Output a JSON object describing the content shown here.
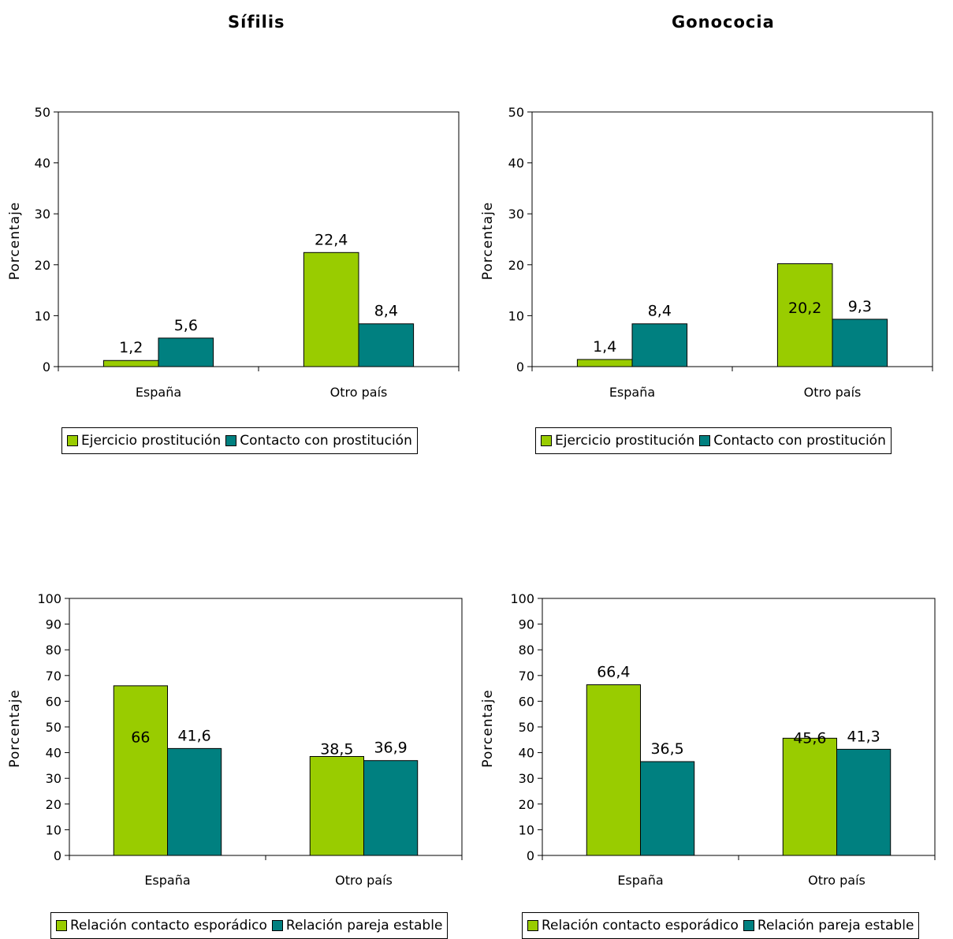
{
  "columns": {
    "left_title": "Sífilis",
    "right_title": "Gonococia"
  },
  "colors": {
    "green": "#99CC00",
    "teal": "#008080"
  },
  "chart_data": [
    {
      "type": "bar",
      "title": "",
      "ylabel": "Porcentaje",
      "xlabel": "",
      "ylim": [
        0,
        50
      ],
      "yticks": [
        0,
        10,
        20,
        30,
        40,
        50
      ],
      "categories": [
        "España",
        "Otro país"
      ],
      "series": [
        {
          "name": "Ejercicio prostitución",
          "values": [
            1.2,
            22.4
          ],
          "labels": [
            "1,2",
            "22,4"
          ]
        },
        {
          "name": "Contacto con prostitución",
          "values": [
            5.6,
            8.4
          ],
          "labels": [
            "5,6",
            "8,4"
          ]
        }
      ],
      "legend": "bottom"
    },
    {
      "type": "bar",
      "title": "",
      "ylabel": "Porcentaje",
      "xlabel": "",
      "ylim": [
        0,
        50
      ],
      "yticks": [
        0,
        10,
        20,
        30,
        40,
        50
      ],
      "categories": [
        "España",
        "Otro país"
      ],
      "series": [
        {
          "name": "Ejercicio prostitución",
          "values": [
            1.4,
            20.2
          ],
          "labels": [
            "1,4",
            "20,2"
          ]
        },
        {
          "name": "Contacto con prostitución",
          "values": [
            8.4,
            9.3
          ],
          "labels": [
            "8,4",
            "9,3"
          ]
        }
      ],
      "legend": "bottom"
    },
    {
      "type": "bar",
      "title": "",
      "ylabel": "Porcentaje",
      "xlabel": "",
      "ylim": [
        0,
        100
      ],
      "yticks": [
        0,
        10,
        20,
        30,
        40,
        50,
        60,
        70,
        80,
        90,
        100
      ],
      "categories": [
        "España",
        "Otro país"
      ],
      "series": [
        {
          "name": "Relación contacto esporádico",
          "values": [
            66,
            38.5
          ],
          "labels": [
            "66",
            "38,5"
          ]
        },
        {
          "name": "Relación pareja estable",
          "values": [
            41.6,
            36.9
          ],
          "labels": [
            "41,6",
            "36,9"
          ]
        }
      ],
      "legend": "bottom"
    },
    {
      "type": "bar",
      "title": "",
      "ylabel": "Porcentaje",
      "xlabel": "",
      "ylim": [
        0,
        100
      ],
      "yticks": [
        0,
        10,
        20,
        30,
        40,
        50,
        60,
        70,
        80,
        90,
        100
      ],
      "categories": [
        "España",
        "Otro país"
      ],
      "series": [
        {
          "name": "Relación contacto esporádico",
          "values": [
            66.4,
            45.6
          ],
          "labels": [
            "66,4",
            "45,6"
          ]
        },
        {
          "name": "Relación pareja estable",
          "values": [
            36.5,
            41.3
          ],
          "labels": [
            "36,5",
            "41,3"
          ]
        }
      ],
      "legend": "bottom"
    }
  ]
}
